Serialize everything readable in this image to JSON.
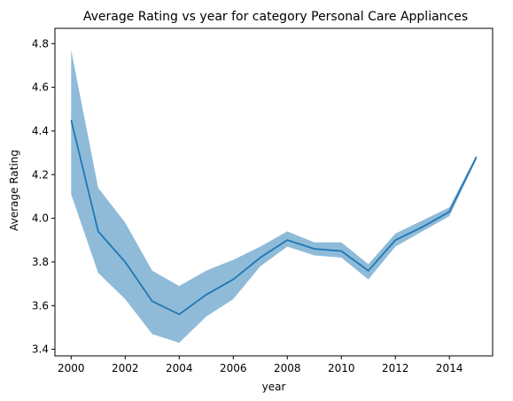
{
  "chart_data": {
    "type": "line",
    "title": "Average Rating vs year for category Personal Care Appliances",
    "xlabel": "year",
    "ylabel": "Average Rating",
    "xlim": [
      1999.4,
      2015.6
    ],
    "ylim": [
      3.37,
      4.87
    ],
    "x_ticks": [
      2000,
      2002,
      2004,
      2006,
      2008,
      2010,
      2012,
      2014
    ],
    "y_ticks": [
      3.4,
      3.6,
      3.8,
      4.0,
      4.2,
      4.4,
      4.6,
      4.8
    ],
    "x_tick_labels": [
      "2000",
      "2002",
      "2004",
      "2006",
      "2008",
      "2010",
      "2012",
      "2014"
    ],
    "y_tick_labels": [
      "3.4",
      "3.6",
      "3.8",
      "4.0",
      "4.2",
      "4.4",
      "4.6",
      "4.8"
    ],
    "grid": false,
    "colors": {
      "line": "#1f77b4",
      "band": "#1f77b4"
    },
    "series": [
      {
        "x": [
          2000,
          2001,
          2002,
          2003,
          2004,
          2005,
          2006,
          2007,
          2008,
          2009,
          2010,
          2011,
          2012,
          2013,
          2014,
          2015
        ],
        "y": [
          4.45,
          3.94,
          3.8,
          3.62,
          3.56,
          3.65,
          3.72,
          3.82,
          3.9,
          3.86,
          3.85,
          3.76,
          3.9,
          3.96,
          4.03,
          4.28
        ],
        "ci_lower": [
          4.11,
          3.75,
          3.63,
          3.47,
          3.43,
          3.55,
          3.63,
          3.78,
          3.87,
          3.83,
          3.82,
          3.72,
          3.87,
          3.94,
          4.01,
          4.27
        ],
        "ci_upper": [
          4.77,
          4.14,
          3.98,
          3.76,
          3.69,
          3.76,
          3.81,
          3.87,
          3.94,
          3.89,
          3.89,
          3.79,
          3.93,
          3.99,
          4.05,
          4.29
        ]
      }
    ]
  }
}
